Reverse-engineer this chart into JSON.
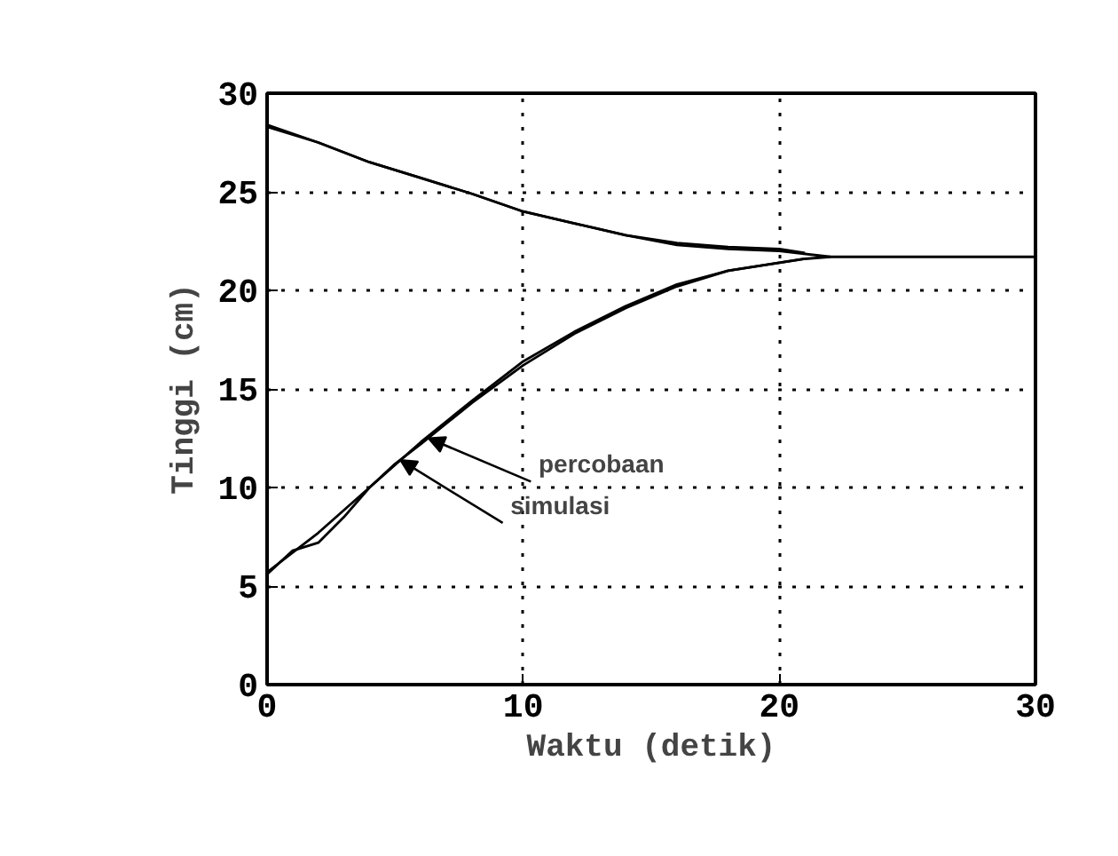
{
  "chart_data": {
    "type": "line",
    "xlabel": "Waktu (detik)",
    "ylabel": "Tinggi (cm)",
    "xlim": [
      0,
      30
    ],
    "ylim": [
      0,
      30
    ],
    "xticks": [
      0,
      10,
      20,
      30
    ],
    "yticks": [
      0,
      5,
      10,
      15,
      20,
      25,
      30
    ],
    "grid": true,
    "line_style": "solid",
    "series": [
      {
        "color": "#000000",
        "x": [
          0,
          2,
          4,
          6,
          8,
          10,
          12,
          14,
          16,
          18,
          20,
          21,
          22
        ],
        "values": [
          5.7,
          7.7,
          10.0,
          12.3,
          14.4,
          16.4,
          17.9,
          19.2,
          20.3,
          21.0,
          21.4,
          21.6,
          21.7
        ]
      },
      {
        "color": "#000000",
        "x": [
          0,
          1,
          2,
          3,
          4,
          5,
          6,
          8,
          10,
          12,
          14,
          16,
          18,
          20,
          21
        ],
        "values": [
          5.6,
          6.8,
          7.2,
          8.5,
          10.0,
          11.2,
          12.2,
          14.3,
          16.2,
          17.8,
          19.1,
          20.2,
          21.0,
          21.4,
          21.6
        ]
      },
      {
        "color": "#000000",
        "x": [
          0,
          2,
          4,
          6,
          8,
          10,
          12,
          14,
          16,
          18,
          20,
          22,
          26,
          30
        ],
        "values": [
          28.4,
          27.5,
          26.5,
          25.7,
          24.9,
          24.0,
          23.4,
          22.8,
          22.3,
          22.1,
          22.0,
          21.7,
          21.7,
          21.7
        ]
      },
      {
        "color": "#000000",
        "x": [
          0,
          2,
          4,
          6,
          8,
          10,
          12,
          14,
          16,
          18,
          20,
          21
        ],
        "values": [
          28.3,
          27.5,
          26.5,
          25.7,
          24.9,
          24.0,
          23.4,
          22.8,
          22.4,
          22.2,
          22.1,
          21.9
        ]
      }
    ],
    "annotations": [
      {
        "text": "percobaan",
        "x": 6.3,
        "y": 12.5
      },
      {
        "text": "simulasi",
        "x": 5.2,
        "y": 11.4
      }
    ]
  }
}
